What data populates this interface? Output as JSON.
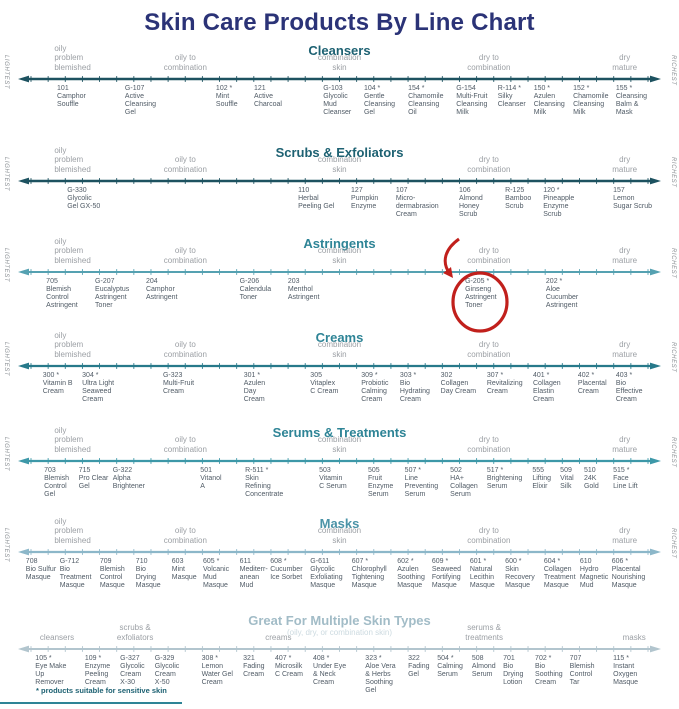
{
  "chart_data": {
    "type": "line",
    "title": "Skin Care Products By Line Chart",
    "left_axis_label": "LIGHTEST",
    "right_axis_label": "RICHEST",
    "footnote": "* products suitable for sensitive skin",
    "colors": {
      "title": "#2b3377",
      "highlight": "#c1201c",
      "product_text": "#505b66",
      "scale_label": "#9b9fa4",
      "footnote": "#1d6172"
    },
    "highlight": {
      "section": "Astringents",
      "code": "G-205 *",
      "product": "Ginseng Astringent Toner",
      "annotation": "red circle with curved arrow"
    },
    "skin_type_labels": [
      {
        "text": "oily\nproblem\nblemished",
        "pos": 8,
        "align": "left"
      },
      {
        "text": "oily to\ncombination",
        "pos": 27.3
      },
      {
        "text": "combination\nskin",
        "pos": 50
      },
      {
        "text": "dry to\ncombination",
        "pos": 72
      },
      {
        "text": "dry\nmature",
        "pos": 92
      }
    ],
    "sections": [
      {
        "name": "Cleansers",
        "height": 102,
        "heading_color": "#1d6172",
        "line_color": "#1d5260",
        "line_width": 2.4,
        "products": [
          {
            "code": "101",
            "pos": 8.4,
            "name": "Camphor\nSouffle"
          },
          {
            "code": "G-107",
            "pos": 18.4,
            "name": "Active\nCleansing\nGel"
          },
          {
            "code": "102 *",
            "pos": 31.8,
            "name": "Mint\nSouffle"
          },
          {
            "code": "121",
            "pos": 37.4,
            "name": "Active\nCharcoal"
          },
          {
            "code": "G-103",
            "pos": 47.6,
            "name": "Glycolic\nMud\nCleanser"
          },
          {
            "code": "104 *",
            "pos": 53.6,
            "name": "Gentle\nCleansing\nGel"
          },
          {
            "code": "154 *",
            "pos": 60.1,
            "name": "Chamomile\nCleansing\nOil"
          },
          {
            "code": "G-154",
            "pos": 67.2,
            "name": "Multi-Fruit\nCleansing\nMilk"
          },
          {
            "code": "R-114 *",
            "pos": 73.3,
            "name": "Silky\nCleanser"
          },
          {
            "code": "150 *",
            "pos": 78.6,
            "name": "Azulen\nCleansing\nMilk"
          },
          {
            "code": "152 *",
            "pos": 84.4,
            "name": "Chamomile\nCleansing\nMilk"
          },
          {
            "code": "155 *",
            "pos": 90.7,
            "name": "Cleansing\nBalm &\nMask"
          }
        ]
      },
      {
        "name": "Scrubs & Exfoliators",
        "height": 91,
        "heading_color": "#1d6172",
        "line_color": "#1d5260",
        "line_width": 2.4,
        "products": [
          {
            "code": "G-330",
            "pos": 9.9,
            "name": "Glycolic\nGel GX-50"
          },
          {
            "code": "110",
            "pos": 43.9,
            "name": "Herbal\nPeeling Gel"
          },
          {
            "code": "127",
            "pos": 51.7,
            "name": "Pumpkin\nEnzyme"
          },
          {
            "code": "107",
            "pos": 58.3,
            "name": "Micro-\ndermabrasion\nCream"
          },
          {
            "code": "106",
            "pos": 67.6,
            "name": "Almond\nHoney\nScrub"
          },
          {
            "code": "R-125",
            "pos": 74.4,
            "name": "Bamboo\nScrub"
          },
          {
            "code": "120 *",
            "pos": 80.0,
            "name": "Pineapple\nEnzyme\nScrub"
          },
          {
            "code": "157",
            "pos": 90.3,
            "name": "Lemon\nSugar Scrub"
          }
        ]
      },
      {
        "name": "Astringents",
        "height": 94,
        "heading_color": "#2e8496",
        "line_color": "#55a1b1",
        "line_width": 2,
        "products": [
          {
            "code": "705",
            "pos": 6.8,
            "name": "Blemish\nControl\nAstringent"
          },
          {
            "code": "G-207",
            "pos": 14.0,
            "name": "Eucalyptus\nAstringent\nToner"
          },
          {
            "code": "204",
            "pos": 21.5,
            "name": "Camphor\nAstringent"
          },
          {
            "code": "G-206",
            "pos": 35.3,
            "name": "Calendula\nToner"
          },
          {
            "code": "203",
            "pos": 42.4,
            "name": "Menthol\nAstringent"
          },
          {
            "code": "G-205 *",
            "pos": 68.5,
            "name": "Ginseng\nAstringent\nToner"
          },
          {
            "code": "202 *",
            "pos": 80.4,
            "name": "Aloe\nCucumber\nAstringent"
          }
        ]
      },
      {
        "name": "Creams",
        "height": 95,
        "heading_color": "#2e8496",
        "line_color": "#27798a",
        "line_width": 2.2,
        "products": [
          {
            "code": "300 *",
            "pos": 6.3,
            "name": "Vitamin B\nCream"
          },
          {
            "code": "304 *",
            "pos": 12.1,
            "name": "Ultra Light\nSeaweed\nCream"
          },
          {
            "code": "G-323",
            "pos": 24.0,
            "name": "Multi-Fruit\nCream"
          },
          {
            "code": "301 *",
            "pos": 35.9,
            "name": "Azulen\nDay\nCream"
          },
          {
            "code": "305",
            "pos": 45.7,
            "name": "Vitaplex\nC Cream"
          },
          {
            "code": "309 *",
            "pos": 53.2,
            "name": "Probiotic\nCalming\nCream"
          },
          {
            "code": "303 *",
            "pos": 58.9,
            "name": "Bio\nHydrating\nCream"
          },
          {
            "code": "302",
            "pos": 64.9,
            "name": "Collagen\nDay Cream"
          },
          {
            "code": "307 *",
            "pos": 71.7,
            "name": "Revitalizing\nCream"
          },
          {
            "code": "401 *",
            "pos": 78.5,
            "name": "Collagen\nElastin\nCream"
          },
          {
            "code": "402 *",
            "pos": 85.1,
            "name": "Placental\nCream"
          },
          {
            "code": "403 *",
            "pos": 90.7,
            "name": "Bio\nEffective\nCream"
          }
        ]
      },
      {
        "name": "Serums & Treatments",
        "height": 91,
        "heading_color": "#2e8496",
        "line_color": "#3d98a8",
        "line_width": 2.2,
        "products": [
          {
            "code": "703",
            "pos": 6.5,
            "name": "Blemish\nControl\nGel"
          },
          {
            "code": "715",
            "pos": 11.6,
            "name": "Pro Clear\nGel"
          },
          {
            "code": "G-322",
            "pos": 16.6,
            "name": "Alpha\nBrightener"
          },
          {
            "code": "501",
            "pos": 29.5,
            "name": "Vitanol\nA"
          },
          {
            "code": "R-511 *",
            "pos": 36.1,
            "name": "Skin\nRefining\nConcentrate"
          },
          {
            "code": "503",
            "pos": 47.0,
            "name": "Vitamin\nC Serum"
          },
          {
            "code": "505",
            "pos": 54.2,
            "name": "Fruit\nEnzyme\nSerum"
          },
          {
            "code": "507 *",
            "pos": 59.6,
            "name": "Line\nPreventing\nSerum"
          },
          {
            "code": "502",
            "pos": 66.3,
            "name": "HA+\nCollagen\nSerum"
          },
          {
            "code": "517 *",
            "pos": 71.7,
            "name": "Brightening\nSerum"
          },
          {
            "code": "555",
            "pos": 78.4,
            "name": "Lifting\nElixir"
          },
          {
            "code": "509",
            "pos": 82.5,
            "name": "Vital\nSilk"
          },
          {
            "code": "510",
            "pos": 86.0,
            "name": "24K\nGold"
          },
          {
            "code": "515 *",
            "pos": 90.3,
            "name": "Face\nLine Lift"
          }
        ]
      },
      {
        "name": "Masks",
        "height": 97,
        "heading_color": "#4b93a7",
        "line_color": "#8cb7c9",
        "line_width": 2.2,
        "products": [
          {
            "code": "708",
            "pos": 3.8,
            "name": "Bio Sulfur\nMasque"
          },
          {
            "code": "G-712",
            "pos": 8.8,
            "name": "Bio\nTreatment\nMasque"
          },
          {
            "code": "709",
            "pos": 14.7,
            "name": "Blemish\nControl\nMasque"
          },
          {
            "code": "710",
            "pos": 20.0,
            "name": "Bio\nDrying\nMasque"
          },
          {
            "code": "603",
            "pos": 25.3,
            "name": "Mint\nMasque"
          },
          {
            "code": "605 *",
            "pos": 29.9,
            "name": "Volcanic\nMud\nMasque"
          },
          {
            "code": "611",
            "pos": 35.3,
            "name": "Mediterr-\nanean\nMud"
          },
          {
            "code": "608 *",
            "pos": 39.8,
            "name": "Cucumber\nIce Sorbet"
          },
          {
            "code": "G-611",
            "pos": 45.7,
            "name": "Glycolic\nExfoliating\nMasque"
          },
          {
            "code": "607 *",
            "pos": 51.8,
            "name": "Chlorophyll\nTightening\nMasque"
          },
          {
            "code": "602 *",
            "pos": 58.5,
            "name": "Azulen\nSoothing\nMasque"
          },
          {
            "code": "609 *",
            "pos": 63.6,
            "name": "Seaweed\nFortifying\nMasque"
          },
          {
            "code": "601 *",
            "pos": 69.2,
            "name": "Natural\nLecithin\nMasque"
          },
          {
            "code": "600 *",
            "pos": 74.4,
            "name": "Skin\nRecovery\nMasque"
          },
          {
            "code": "604 *",
            "pos": 80.1,
            "name": "Collagen\nTreatment\nMasque"
          },
          {
            "code": "610",
            "pos": 85.4,
            "name": "Hydro\nMagnetic\nMud"
          },
          {
            "code": "606 *",
            "pos": 90.1,
            "name": "Placental\nNourishing\nMasque"
          }
        ]
      },
      {
        "name": "Great For Multiple Skin Types",
        "subtitle": "(oily, dry, or combination skin)",
        "height": 95,
        "heading_color": "#a2bcc7",
        "line_color": "#b2c5ce",
        "line_width": 2,
        "side_labels": false,
        "category_labels": [
          {
            "text": "cleansers",
            "pos": 8.4
          },
          {
            "text": "scrubs &\nexfoliators",
            "pos": 19.9
          },
          {
            "text": "creams",
            "pos": 41.0
          },
          {
            "text": "serums &\ntreatments",
            "pos": 71.3
          },
          {
            "text": "masks",
            "pos": 93.4
          }
        ],
        "products": [
          {
            "code": "105 *",
            "pos": 5.2,
            "name": "Eye Make\nUp\nRemover"
          },
          {
            "code": "109 *",
            "pos": 12.5,
            "name": "Enzyme\nPeeling\nCream"
          },
          {
            "code": "G-327",
            "pos": 17.7,
            "name": "Glycolic\nCream\nX-30"
          },
          {
            "code": "G-329",
            "pos": 22.8,
            "name": "Glycolic\nCream\nX-50"
          },
          {
            "code": "308 *",
            "pos": 29.7,
            "name": "Lemon\nWater Gel\nCream"
          },
          {
            "code": "321",
            "pos": 35.8,
            "name": "Fading\nCream"
          },
          {
            "code": "407 *",
            "pos": 40.5,
            "name": "Microsilk\nC Cream"
          },
          {
            "code": "408 *",
            "pos": 46.1,
            "name": "Under Eye\n& Neck\nCream"
          },
          {
            "code": "323 *",
            "pos": 53.8,
            "name": "Aloe Vera\n& Herbs\nSoothing\nGel"
          },
          {
            "code": "322",
            "pos": 60.1,
            "name": "Fading\nGel"
          },
          {
            "code": "504 *",
            "pos": 64.4,
            "name": "Calming\nSerum"
          },
          {
            "code": "508",
            "pos": 69.5,
            "name": "Almond\nSerum"
          },
          {
            "code": "701",
            "pos": 74.1,
            "name": "Bio\nDrying\nLotion"
          },
          {
            "code": "702 *",
            "pos": 78.8,
            "name": "Bio\nSoothing\nCream"
          },
          {
            "code": "707",
            "pos": 83.9,
            "name": "Blemish\nControl\nTar"
          },
          {
            "code": "115 *",
            "pos": 90.3,
            "name": "Instant\nOxygen\nMasque"
          }
        ]
      }
    ]
  }
}
